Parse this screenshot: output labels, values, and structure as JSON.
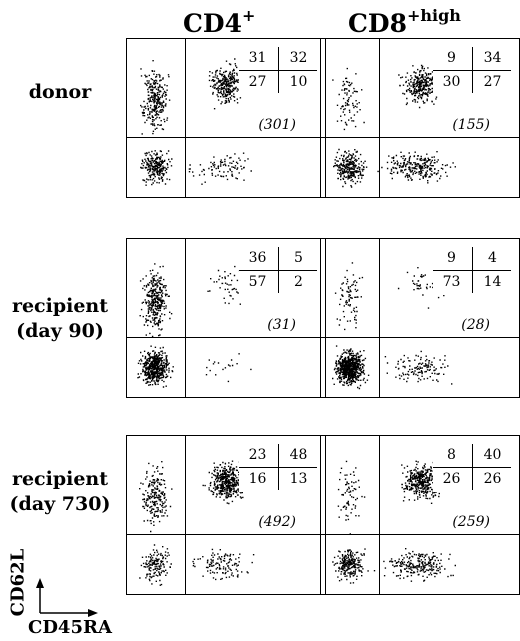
{
  "columns": [
    {
      "main": "CD4",
      "sup": "+"
    },
    {
      "main": "CD8",
      "sup": "+high"
    }
  ],
  "rows": [
    {
      "label_line1": "donor",
      "label_line2": ""
    },
    {
      "label_line1": "recipient",
      "label_line2": "(day 90)"
    },
    {
      "label_line1": "recipient",
      "label_line2": "(day 730)"
    }
  ],
  "panels": [
    {
      "row": 0,
      "col": 0,
      "quadrants": {
        "tl": "31",
        "tr": "32",
        "bl": "27",
        "br": "10"
      },
      "count": "(301)"
    },
    {
      "row": 0,
      "col": 1,
      "quadrants": {
        "tl": "9",
        "tr": "34",
        "bl": "30",
        "br": "27"
      },
      "count": "(155)"
    },
    {
      "row": 1,
      "col": 0,
      "quadrants": {
        "tl": "36",
        "tr": "5",
        "bl": "57",
        "br": "2"
      },
      "count": "(31)"
    },
    {
      "row": 1,
      "col": 1,
      "quadrants": {
        "tl": "9",
        "tr": "4",
        "bl": "73",
        "br": "14"
      },
      "count": "(28)"
    },
    {
      "row": 2,
      "col": 0,
      "quadrants": {
        "tl": "23",
        "tr": "48",
        "bl": "16",
        "br": "13"
      },
      "count": "(492)"
    },
    {
      "row": 2,
      "col": 1,
      "quadrants": {
        "tl": "8",
        "tr": "40",
        "bl": "26",
        "br": "26"
      },
      "count": "(259)"
    }
  ],
  "axes": {
    "y_label": "CD62L",
    "x_label": "CD45RA"
  }
}
